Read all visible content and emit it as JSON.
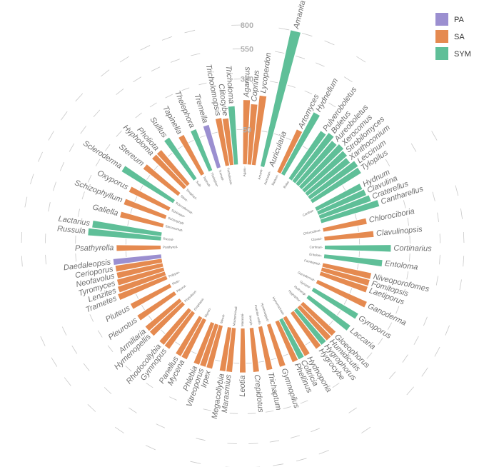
{
  "chart_data": {
    "type": "bar",
    "polar": true,
    "scale": "sqrt",
    "y_ticks": [
      50,
      300,
      550,
      800
    ],
    "grid": true,
    "legend": {
      "placement": "top-right",
      "entries": [
        {
          "key": "PA",
          "label": "PA",
          "color": "#9b8fd0"
        },
        {
          "key": "SA",
          "label": "SA",
          "color": "#e58a50"
        },
        {
          "key": "SYM",
          "label": "SYM",
          "color": "#5fbf98"
        }
      ]
    },
    "groups": [
      {
        "order": "Agaric-",
        "genera": [
          {
            "name": "Agaricus",
            "value": 170,
            "type": "SA"
          },
          {
            "name": "Coprinus",
            "value": 150,
            "type": "SA"
          },
          {
            "name": "Lycoperdon",
            "value": 200,
            "type": "SA"
          }
        ]
      },
      {
        "order": "Amanit-",
        "genera": [
          {
            "name": "Amanita",
            "value": 800,
            "type": "SYM"
          }
        ]
      },
      {
        "order": "Auriculari-",
        "genera": [
          {
            "name": "Auricularia",
            "value": 0,
            "type": "SA"
          }
        ]
      },
      {
        "order": "Bankeri-",
        "genera": [
          {
            "name": "Artomyces",
            "value": 90,
            "type": "SA"
          },
          {
            "name": "Hydnellum",
            "value": 200,
            "type": "SYM"
          }
        ]
      },
      {
        "order": "Bolet-",
        "genera": [
          {
            "name": "Pulveroboletus",
            "value": 135,
            "type": "SYM"
          },
          {
            "name": "Boletus",
            "value": 150,
            "type": "SYM"
          },
          {
            "name": "Aureoboletus",
            "value": 130,
            "type": "SYM"
          },
          {
            "name": "Xerocomus",
            "value": 140,
            "type": "SYM"
          },
          {
            "name": "Strobilomyces",
            "value": 130,
            "type": "SYM"
          },
          {
            "name": "Xanthoconium",
            "value": 120,
            "type": "SYM"
          },
          {
            "name": "Leccinum",
            "value": 140,
            "type": "SYM"
          },
          {
            "name": "Tylopilus",
            "value": 135,
            "type": "SYM"
          }
        ]
      },
      {
        "order": "Canthar-",
        "genera": [
          {
            "name": "Hydnum",
            "value": 105,
            "type": "SYM"
          },
          {
            "name": "Clavulina",
            "value": 110,
            "type": "SYM"
          },
          {
            "name": "Craterellus",
            "value": 120,
            "type": "SYM"
          },
          {
            "name": "Cantharellus",
            "value": 150,
            "type": "SYM"
          }
        ]
      },
      {
        "order": "Chlorocibori-",
        "genera": [
          {
            "name": "Chlorociboria",
            "value": 80,
            "type": "SA"
          }
        ]
      },
      {
        "order": "Clavari-",
        "genera": [
          {
            "name": "Clavulinopsis",
            "value": 100,
            "type": "SA"
          }
        ]
      },
      {
        "order": "Cortinari-",
        "genera": [
          {
            "name": "Cortinarius",
            "value": 180,
            "type": "SYM"
          }
        ]
      },
      {
        "order": "Entolom-",
        "genera": [
          {
            "name": "Entoloma",
            "value": 140,
            "type": "SYM"
          }
        ]
      },
      {
        "order": "Fomitopsid-",
        "genera": [
          {
            "name": "Niveoporofomes",
            "value": 100,
            "type": "SA"
          },
          {
            "name": "Fomitopsis",
            "value": 100,
            "type": "SA"
          },
          {
            "name": "Laetiporus",
            "value": 100,
            "type": "SA"
          }
        ]
      },
      {
        "order": "Ganodermat-",
        "genera": [
          {
            "name": "Ganoderma",
            "value": 120,
            "type": "SA"
          }
        ]
      },
      {
        "order": "Gyropor-",
        "genera": [
          {
            "name": "Gyroporus",
            "value": 110,
            "type": "SYM"
          }
        ]
      },
      {
        "order": "Hydnangi-",
        "genera": [
          {
            "name": "Laccaria",
            "value": 110,
            "type": "SYM"
          }
        ]
      },
      {
        "order": "Hygrophor-",
        "genera": [
          {
            "name": "Gloeophorus",
            "value": 80,
            "type": "SA"
          },
          {
            "name": "Humidicutis",
            "value": 80,
            "type": "SA"
          },
          {
            "name": "Hygrophorus",
            "value": 80,
            "type": "SYM"
          },
          {
            "name": "Hygrocybe",
            "value": 80,
            "type": "SA"
          }
        ]
      },
      {
        "order": "Hymenochaet-",
        "genera": [
          {
            "name": "Hydnoporia",
            "value": 80,
            "type": "SA"
          },
          {
            "name": "Coltricia",
            "value": 80,
            "type": "SYM"
          },
          {
            "name": "Phellinus",
            "value": 80,
            "type": "SA"
          }
        ]
      },
      {
        "order": "Hymenogastr-",
        "genera": [
          {
            "name": "Gymnopilus",
            "value": 80,
            "type": "SA"
          }
        ]
      },
      {
        "order": "Incertae sedis",
        "genera": [
          {
            "name": "Trichaptum",
            "value": 80,
            "type": "SA"
          }
        ]
      },
      {
        "order": "Inocyb-",
        "genera": [
          {
            "name": "Crepidotus",
            "value": 80,
            "type": "SA"
          }
        ]
      },
      {
        "order": "Marasmi-",
        "genera": [
          {
            "name": "Leotia",
            "value": 80,
            "type": "SA"
          }
        ]
      },
      {
        "order": "Marasmi-Inali",
        "genera": [
          {
            "name": "Marasmius",
            "value": 80,
            "type": "SA"
          },
          {
            "name": "Megacollybia",
            "value": 80,
            "type": "SA"
          }
        ]
      },
      {
        "order": "Meruli-",
        "genera": [
          {
            "name": "Irpex",
            "value": 80,
            "type": "SA"
          },
          {
            "name": "Vitreoporus",
            "value": 80,
            "type": "SA"
          },
          {
            "name": "Phlebia",
            "value": 80,
            "type": "SA"
          }
        ]
      },
      {
        "order": "Mycen-",
        "genera": [
          {
            "name": "Mycena",
            "value": 80,
            "type": "SA"
          },
          {
            "name": "Panellus",
            "value": 80,
            "type": "SA"
          }
        ]
      },
      {
        "order": "Omphalot-",
        "genera": [
          {
            "name": "Gymnopus",
            "value": 80,
            "type": "SA"
          },
          {
            "name": "Rhodocollybia",
            "value": 80,
            "type": "SA"
          }
        ]
      },
      {
        "order": "Physalacri-",
        "genera": [
          {
            "name": "Hymenopellis",
            "value": 80,
            "type": "SA"
          },
          {
            "name": "Armillaria",
            "value": 80,
            "type": "SA"
          }
        ]
      },
      {
        "order": "Pleurot-",
        "genera": [
          {
            "name": "Pleurotus",
            "value": 80,
            "type": "SA"
          }
        ]
      },
      {
        "order": "Pluto-",
        "genera": [
          {
            "name": "Pluteus",
            "value": 80,
            "type": "SA"
          }
        ]
      },
      {
        "order": "Polypor-",
        "genera": [
          {
            "name": "Trametes",
            "value": 110,
            "type": "SA"
          },
          {
            "name": "Lenzites",
            "value": 100,
            "type": "SA"
          },
          {
            "name": "Tyromyces",
            "value": 95,
            "type": "SA"
          },
          {
            "name": "Neofavolus",
            "value": 90,
            "type": "SA"
          },
          {
            "name": "Cerioporus",
            "value": 90,
            "type": "SA"
          },
          {
            "name": "Daedaleopsis",
            "value": 95,
            "type": "PA"
          }
        ]
      },
      {
        "order": "Psathyrell-",
        "genera": [
          {
            "name": "Psathyrella",
            "value": 80,
            "type": "SA"
          }
        ]
      },
      {
        "order": "Russul-",
        "genera": [
          {
            "name": "Russula",
            "value": 220,
            "type": "SYM"
          },
          {
            "name": "Lactarius",
            "value": 200,
            "type": "SYM"
          }
        ]
      },
      {
        "order": "Sarcosomat-",
        "genera": [
          {
            "name": "Galiella",
            "value": 80,
            "type": "SA"
          }
        ]
      },
      {
        "order": "Schizophyll-",
        "genera": [
          {
            "name": "Schizophyllum",
            "value": 80,
            "type": "SA"
          }
        ]
      },
      {
        "order": "Schizopor-",
        "genera": [
          {
            "name": "Oxyporus",
            "value": 80,
            "type": "SA"
          }
        ]
      },
      {
        "order": "Sclerodermat-",
        "genera": [
          {
            "name": "Scleroderma",
            "value": 150,
            "type": "SYM"
          }
        ]
      },
      {
        "order": "Stere-",
        "genera": [
          {
            "name": "Stereum",
            "value": 80,
            "type": "SA"
          }
        ]
      },
      {
        "order": "Strophari-",
        "genera": [
          {
            "name": "Hypholoma",
            "value": 80,
            "type": "SA"
          },
          {
            "name": "Pholiota",
            "value": 80,
            "type": "SA"
          }
        ]
      },
      {
        "order": "Suill-",
        "genera": [
          {
            "name": "Suillus",
            "value": 100,
            "type": "SYM"
          }
        ]
      },
      {
        "order": "Tapinell-",
        "genera": [
          {
            "name": "Tapinella",
            "value": 80,
            "type": "SA"
          }
        ]
      },
      {
        "order": "Thelephor-",
        "genera": [
          {
            "name": "Thelephora",
            "value": 80,
            "type": "SYM"
          }
        ]
      },
      {
        "order": "Tremell-",
        "genera": [
          {
            "name": "Tremella",
            "value": 80,
            "type": "PA"
          }
        ]
      },
      {
        "order": "Tricholomat-",
        "genera": [
          {
            "name": "Tricholomopsis",
            "value": 95,
            "type": "SA"
          },
          {
            "name": "Clitocybe",
            "value": 90,
            "type": "SA"
          },
          {
            "name": "Tricholoma",
            "value": 140,
            "type": "SYM"
          }
        ]
      }
    ]
  }
}
